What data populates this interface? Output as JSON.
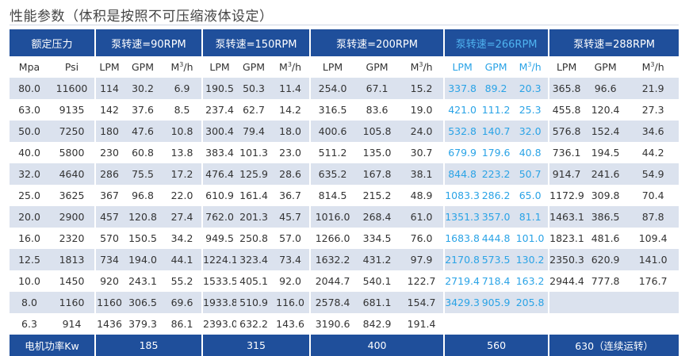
{
  "title": "性能参数（体积是按照不可压缩液体设定）",
  "header": {
    "rated_pressure": "额定压力",
    "groups": [
      "泵转速=90RPM",
      "泵转速=150RPM",
      "泵转速=200RPM",
      "泵转速=266RPM",
      "泵转速=288RPM"
    ]
  },
  "units": {
    "pressure": [
      "Mpa",
      "Psi"
    ],
    "group": [
      "LPM",
      "GPM",
      "M³/h"
    ]
  },
  "rows": [
    [
      "80.0",
      "11600",
      "114",
      "30.2",
      "6.9",
      "190.5",
      "50.3",
      "11.4",
      "254.0",
      "67.1",
      "15.2",
      "337.8",
      "89.2",
      "20.3",
      "365.8",
      "96.6",
      "21.9"
    ],
    [
      "63.0",
      "9135",
      "142",
      "37.6",
      "8.5",
      "237.4",
      "62.7",
      "14.2",
      "316.5",
      "83.6",
      "19.0",
      "421.0",
      "111.2",
      "25.3",
      "455.8",
      "120.4",
      "27.3"
    ],
    [
      "50.0",
      "7250",
      "180",
      "47.6",
      "10.8",
      "300.4",
      "79.4",
      "18.0",
      "400.6",
      "105.8",
      "24.0",
      "532.8",
      "140.7",
      "32.0",
      "576.8",
      "152.4",
      "34.6"
    ],
    [
      "40.0",
      "5800",
      "230",
      "60.8",
      "13.8",
      "383.4",
      "101.3",
      "23.0",
      "511.2",
      "135.0",
      "30.7",
      "679.9",
      "179.6",
      "40.8",
      "736.1",
      "194.5",
      "44.2"
    ],
    [
      "32.0",
      "4640",
      "286",
      "75.5",
      "17.2",
      "476.4",
      "125.9",
      "28.6",
      "635.2",
      "167.8",
      "38.1",
      "844.8",
      "223.2",
      "50.7",
      "914.7",
      "241.6",
      "54.9"
    ],
    [
      "25.0",
      "3625",
      "367",
      "96.8",
      "22.0",
      "610.9",
      "161.4",
      "36.7",
      "814.5",
      "215.2",
      "48.9",
      "1083.3",
      "286.2",
      "65.0",
      "1172.9",
      "309.8",
      "70.4"
    ],
    [
      "20.0",
      "2900",
      "457",
      "120.8",
      "27.4",
      "762.0",
      "201.3",
      "45.7",
      "1016.0",
      "268.4",
      "61.0",
      "1351.3",
      "357.0",
      "81.1",
      "1463.1",
      "386.5",
      "87.8"
    ],
    [
      "16.0",
      "2320",
      "570",
      "150.5",
      "34.2",
      "949.5",
      "250.8",
      "57.0",
      "1266.0",
      "334.5",
      "76.0",
      "1683.8",
      "444.8",
      "101.0",
      "1823.1",
      "481.6",
      "109.4"
    ],
    [
      "12.5",
      "1813",
      "734",
      "194.0",
      "44.1",
      "1224.1",
      "323.4",
      "73.4",
      "1632.2",
      "431.2",
      "97.9",
      "2170.8",
      "573.5",
      "130.2",
      "2350.3",
      "620.9",
      "141.0"
    ],
    [
      "10.0",
      "1450",
      "920",
      "243.1",
      "55.2",
      "1533.5",
      "405.1",
      "92.0",
      "2044.7",
      "540.1",
      "122.7",
      "2719.4",
      "718.4",
      "163.2",
      "2944.4",
      "777.8",
      "176.7"
    ],
    [
      "8.0",
      "1160",
      "1160",
      "306.5",
      "69.6",
      "1933.8",
      "510.9",
      "116.0",
      "2578.4",
      "681.1",
      "154.7",
      "3429.3",
      "905.9",
      "205.8",
      "",
      "",
      ""
    ],
    [
      "6.3",
      "914",
      "1436",
      "379.3",
      "86.1",
      "2393.0",
      "632.2",
      "143.6",
      "3190.6",
      "842.9",
      "191.4",
      "",
      "",
      "",
      "",
      "",
      ""
    ]
  ],
  "footer": {
    "label": "电机功率Kw",
    "values": [
      "185",
      "315",
      "400",
      "560",
      "630（连续运转）"
    ]
  },
  "colors": {
    "header_bg": "#1f4f9b",
    "stripe": "#dbe2ee",
    "highlight": "#2aa3e6"
  }
}
